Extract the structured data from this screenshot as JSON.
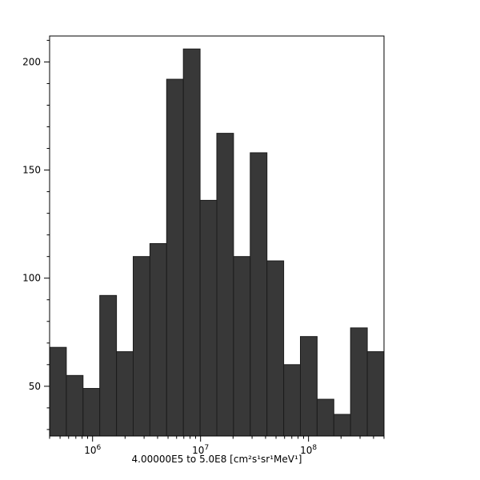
{
  "chart_data": {
    "type": "histogram",
    "title": "",
    "xlabel": "4.00000E5 to 5.0E8 [cm²s¹sr¹MeV¹]",
    "ylabel": "",
    "x_scale": "log",
    "xlim": [
      400000,
      500000000
    ],
    "ylim": [
      27,
      212
    ],
    "bins": 20,
    "bin_edges_rule": "20 equal-width bins in log10 space from 4.0E5 to 5.0E8",
    "values": [
      68,
      55,
      49,
      92,
      66,
      110,
      116,
      192,
      206,
      136,
      167,
      110,
      158,
      108,
      60,
      73,
      44,
      37,
      77,
      66
    ],
    "y_major_ticks": [
      50,
      100,
      150,
      200
    ],
    "y_minor_step": 10,
    "x_major_ticks": [
      {
        "value": 1000000,
        "label_base": "10",
        "label_exp": "6"
      },
      {
        "value": 10000000,
        "label_base": "10",
        "label_exp": "7"
      },
      {
        "value": 100000000,
        "label_base": "10",
        "label_exp": "8"
      }
    ],
    "colors": {
      "bar_fill": "#383838",
      "bar_stroke": "#1c1c1c",
      "axis": "#000000",
      "text": "#000000",
      "background": "#ffffff"
    },
    "legend": "none",
    "grid": "off"
  }
}
